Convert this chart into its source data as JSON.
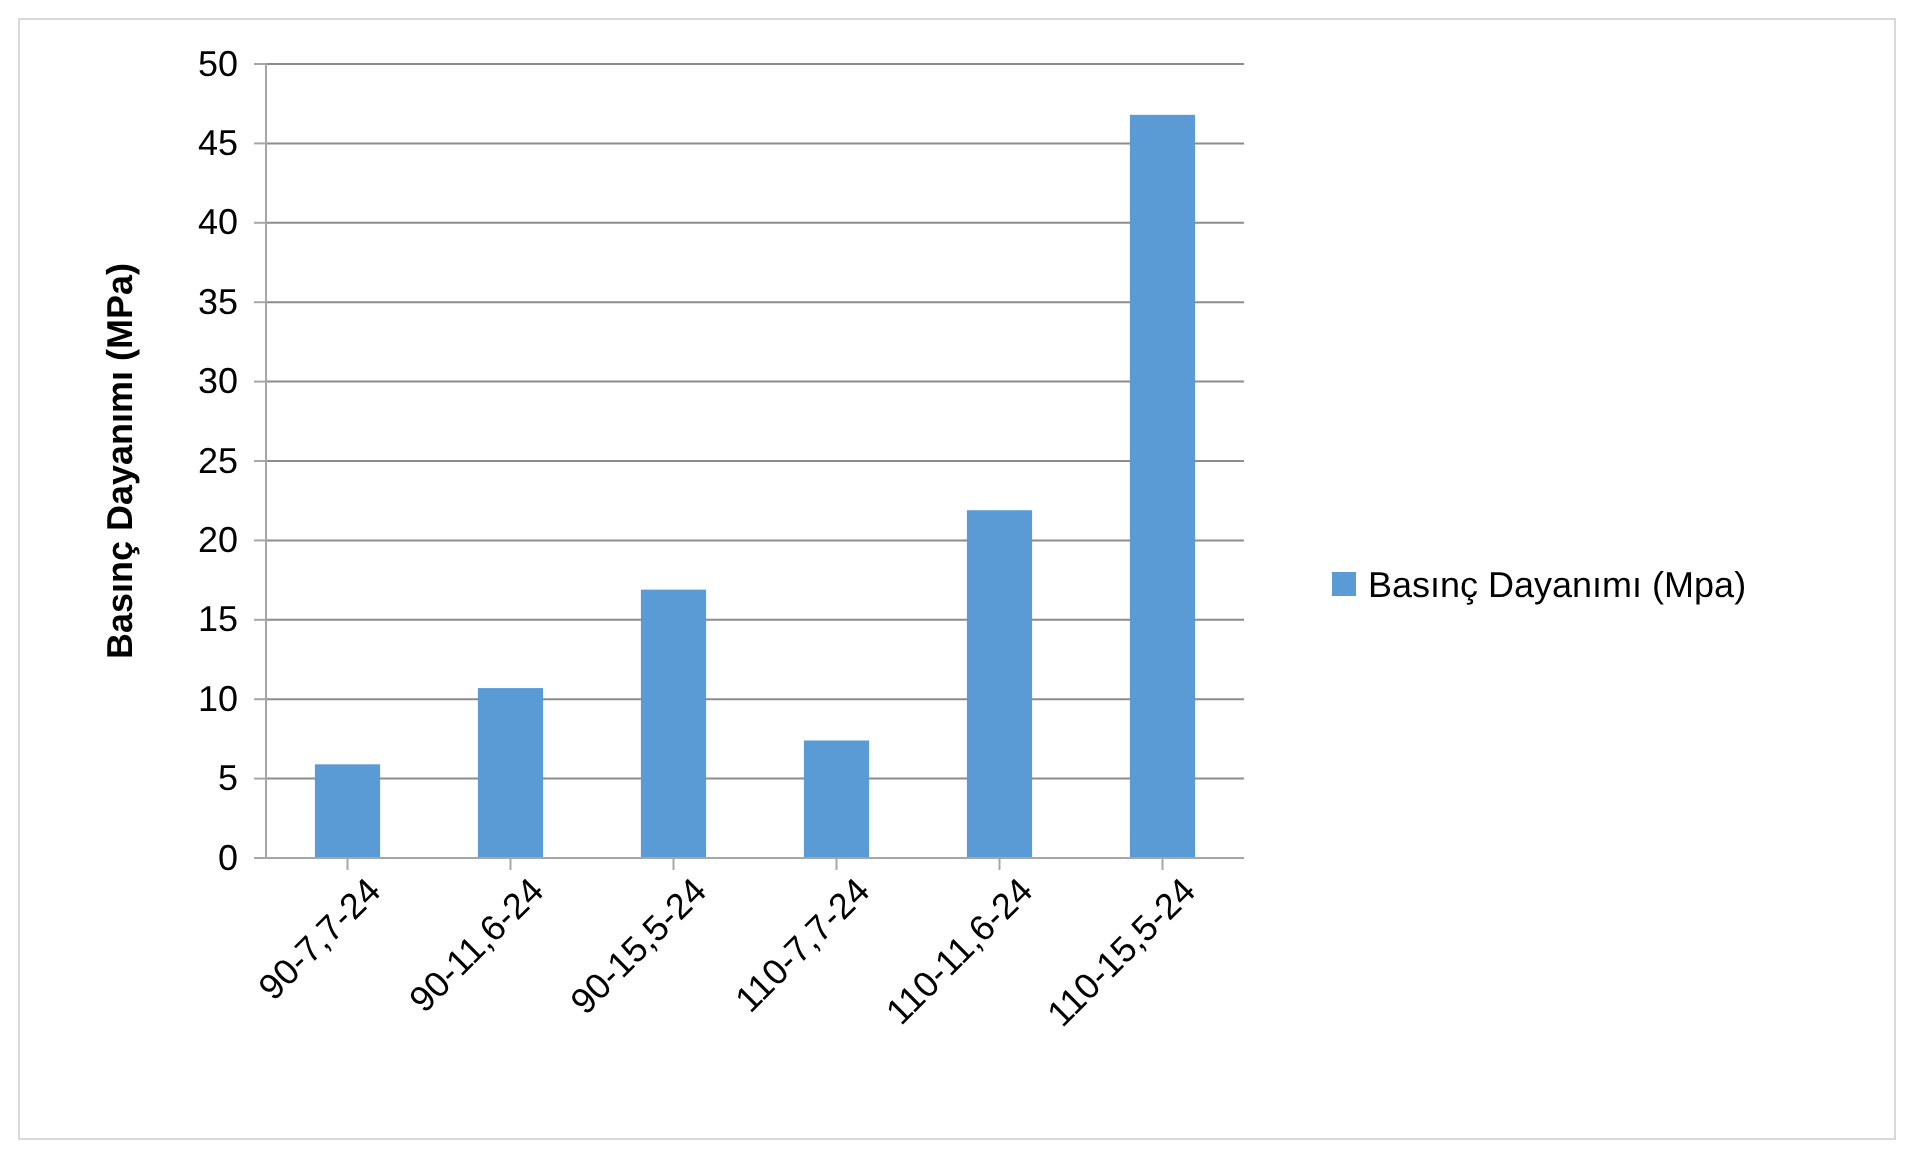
{
  "chart_data": {
    "type": "bar",
    "ylabel": "Basınç Dayanımı (MPa)",
    "categories": [
      "90-7,7-24",
      "90-11,6-24",
      "90-15,5-24",
      "110-7,7-24",
      "110-11,6-24",
      "110-15,5-24"
    ],
    "series": [
      {
        "name": "Basınç Dayanımı (Mpa)",
        "color": "#5b9bd5",
        "values": [
          5.9,
          10.7,
          16.9,
          7.4,
          21.9,
          46.8
        ]
      }
    ],
    "ylim": [
      0,
      50
    ],
    "yticks": [
      0,
      5,
      10,
      15,
      20,
      25,
      30,
      35,
      40,
      45,
      50
    ],
    "grid": "y",
    "legend": "right"
  }
}
